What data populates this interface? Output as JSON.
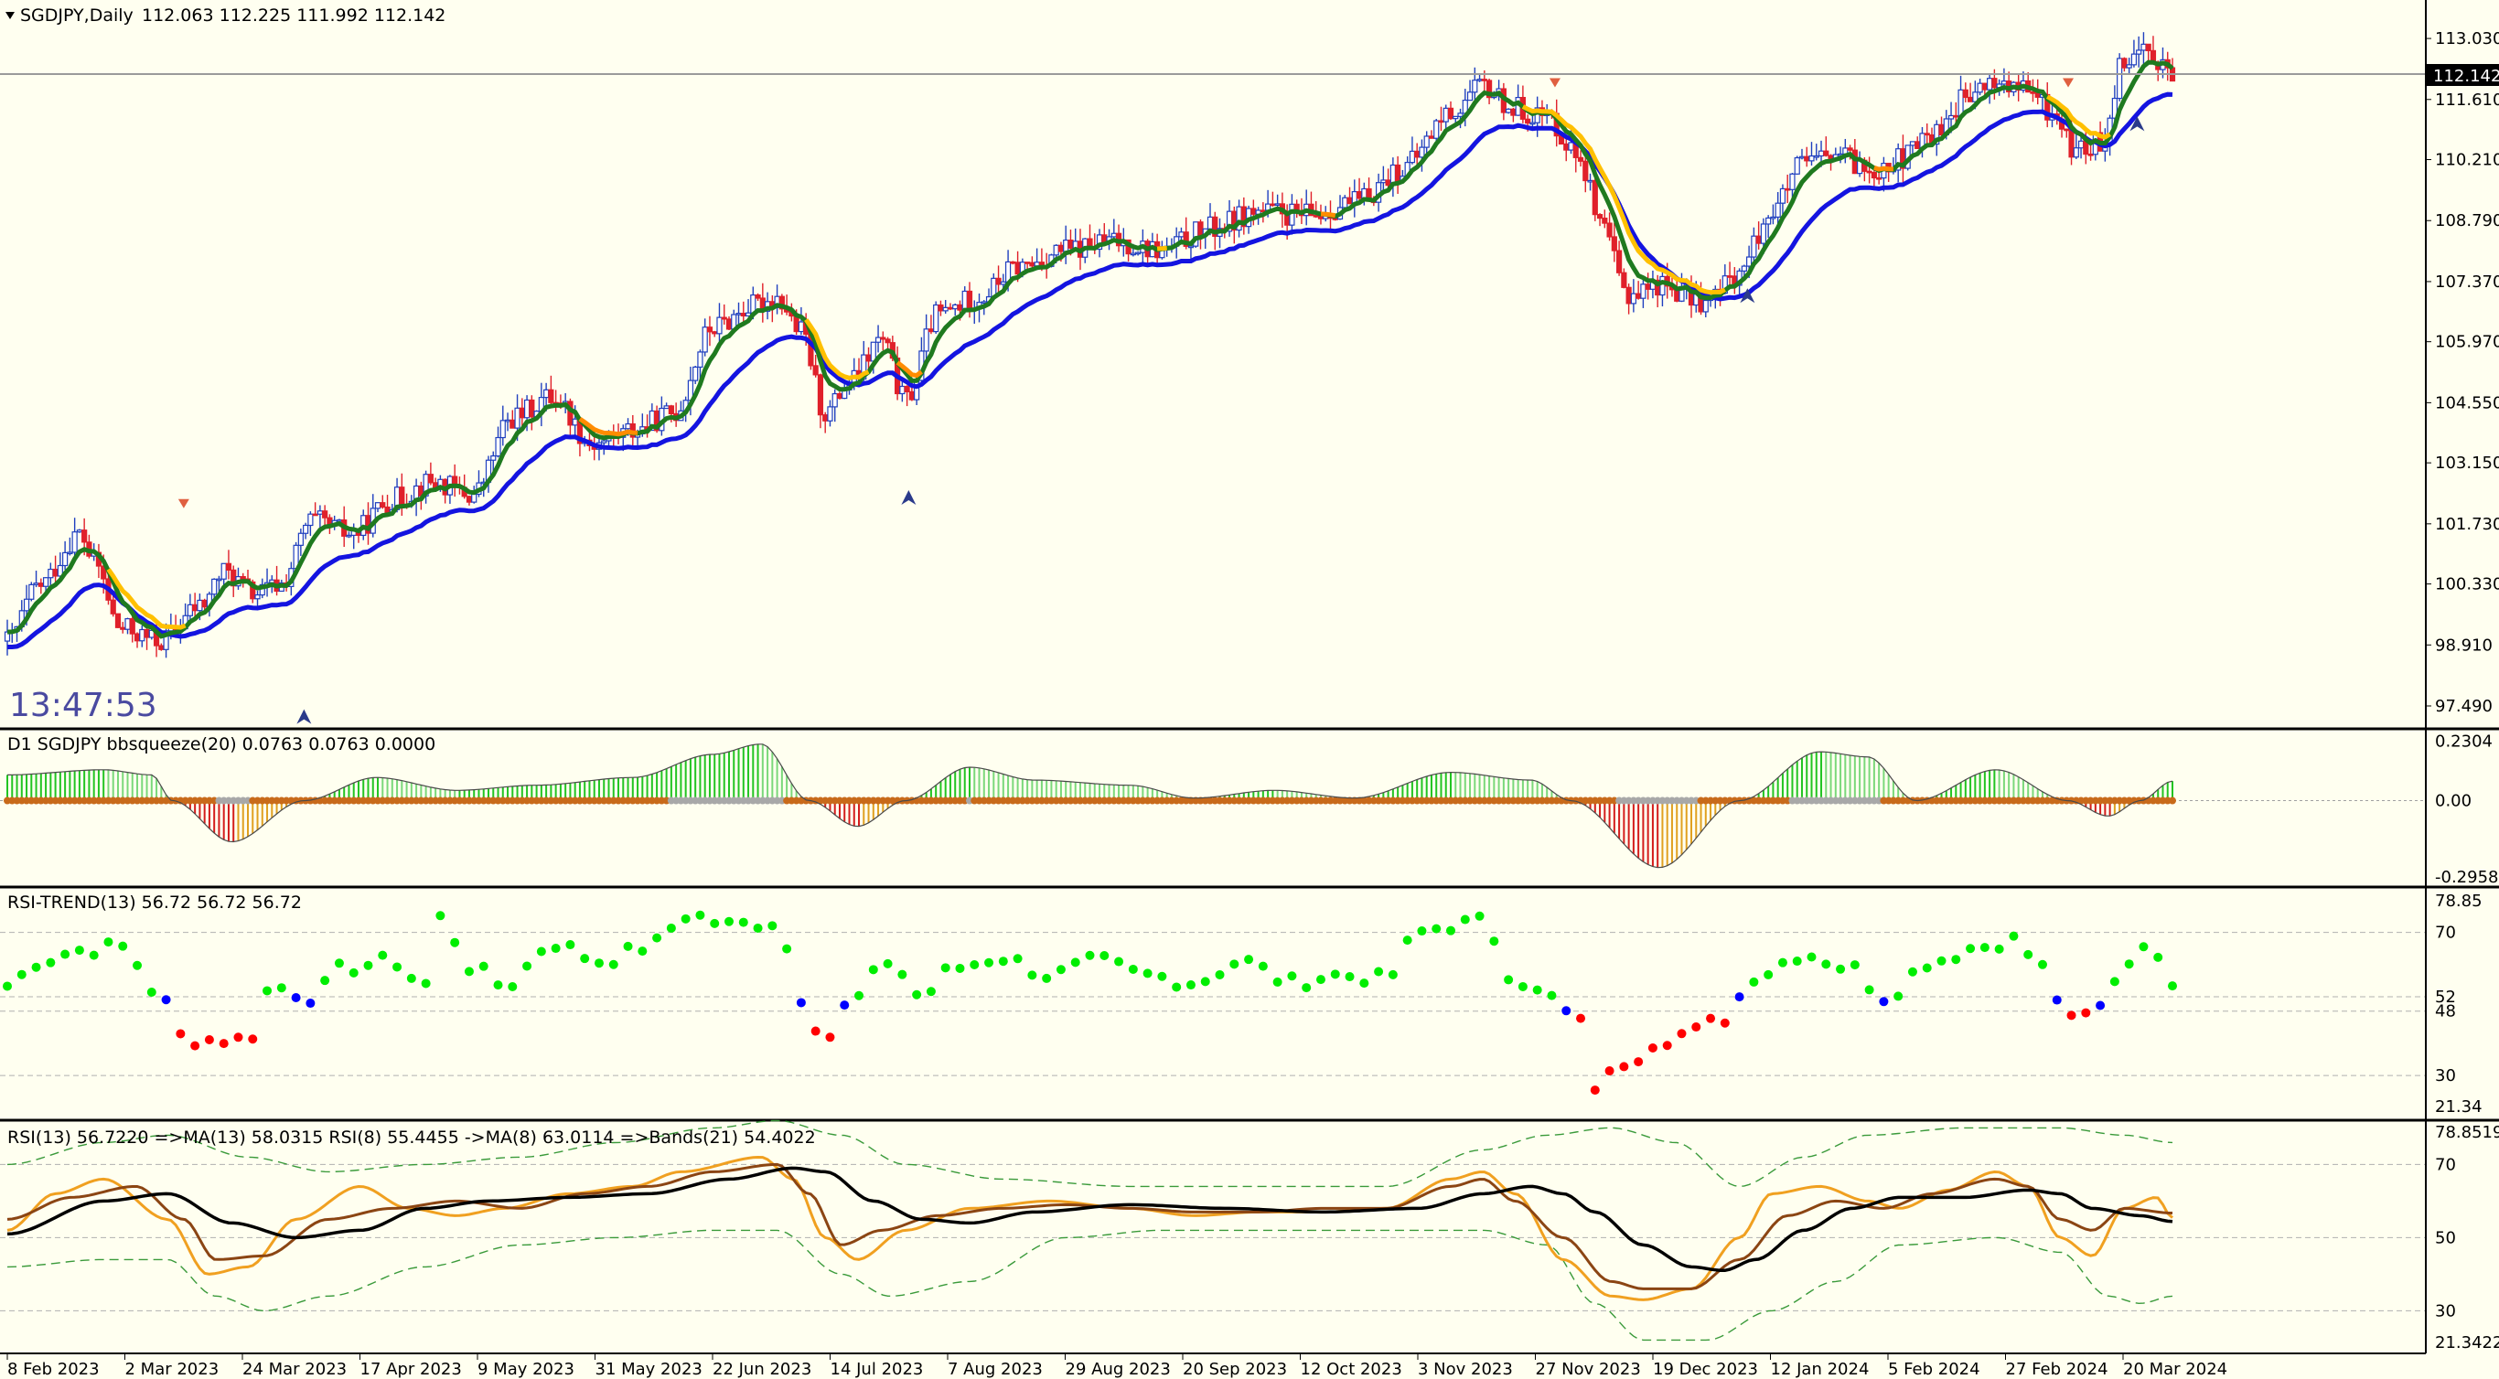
{
  "header": {
    "symbol": "SGDJPY,Daily",
    "ohlc": "112.063 112.225 111.992 112.142",
    "clock": "13:47:53"
  },
  "colors": {
    "background": "#fffff0",
    "axis": "#000000",
    "bull_candle": "#1f3fbf",
    "bear_candle": "#e0202a",
    "ma_fast": "#1f7a1f",
    "ma_slow": "#1414e0",
    "ma_signal_up": "#ffc000",
    "ma_signal_down": "#ff8c00",
    "sq_green": "#22c422",
    "sq_red": "#d41c1c",
    "sq_orange": "#e0a020",
    "rsi_green": "#00ee00",
    "rsi_red": "#ff0000",
    "rsi_blue": "#0000ff",
    "rsi_line": "#f0a020",
    "rsi_ma13": "#8b4513",
    "rsi_long": "#000000",
    "bands": "#3a9a3a"
  },
  "main_panel": {
    "price_axis": [
      "113.030",
      "111.610",
      "110.210",
      "108.790",
      "107.370",
      "105.970",
      "104.550",
      "103.150",
      "101.730",
      "100.330",
      "98.910",
      "97.490"
    ],
    "current_price": "112.142"
  },
  "panel_squeeze": {
    "label": "D1 SGDJPY bbsqueeze(20) 0.0763 0.0763 0.0000",
    "axis": [
      "0.2304",
      "0.00",
      "-0.2958"
    ]
  },
  "panel_rsi_trend": {
    "label": "RSI-TREND(13) 56.72 56.72 56.72",
    "axis": [
      "78.85",
      "70",
      "52",
      "48",
      "30",
      "21.34"
    ]
  },
  "panel_rsi": {
    "label": "RSI(13) 56.7220  =>MA(13) 58.0315  RSI(8) 55.4455  ->MA(8) 63.0114  =>Bands(21) 54.4022",
    "axis": [
      "78.8519",
      "70",
      "50",
      "30",
      "21.3422"
    ]
  },
  "x_axis": [
    "8 Feb 2023",
    "2 Mar 2023",
    "24 Mar 2023",
    "17 Apr 2023",
    "9 May 2023",
    "31 May 2023",
    "22 Jun 2023",
    "14 Jul 2023",
    "7 Aug 2023",
    "29 Aug 2023",
    "20 Sep 2023",
    "12 Oct 2023",
    "3 Nov 2023",
    "27 Nov 2023",
    "19 Dec 2023",
    "12 Jan 2024",
    "5 Feb 2024",
    "27 Feb 2024",
    "20 Mar 2024"
  ],
  "chart_data": {
    "type": "candlestick",
    "symbol": "SGDJPY",
    "timeframe": "Daily",
    "ylim": [
      97.0,
      113.5
    ],
    "close_keypoints": [
      [
        0,
        99.0
      ],
      [
        20,
        100.3
      ],
      [
        45,
        101.5
      ],
      [
        55,
        100.8
      ],
      [
        70,
        99.3
      ],
      [
        95,
        99.0
      ],
      [
        120,
        99.8
      ],
      [
        135,
        100.6
      ],
      [
        155,
        100.1
      ],
      [
        170,
        100.3
      ],
      [
        190,
        101.8
      ],
      [
        215,
        101.5
      ],
      [
        240,
        102.3
      ],
      [
        265,
        102.7
      ],
      [
        290,
        102.4
      ],
      [
        315,
        104.2
      ],
      [
        340,
        104.7
      ],
      [
        365,
        103.6
      ],
      [
        390,
        103.9
      ],
      [
        415,
        104.3
      ],
      [
        440,
        106.3
      ],
      [
        465,
        106.8
      ],
      [
        480,
        107.0
      ],
      [
        495,
        106.2
      ],
      [
        510,
        104.3
      ],
      [
        525,
        105.0
      ],
      [
        545,
        106.0
      ],
      [
        560,
        104.6
      ],
      [
        580,
        106.6
      ],
      [
        605,
        107.0
      ],
      [
        630,
        107.7
      ],
      [
        660,
        108.1
      ],
      [
        690,
        108.3
      ],
      [
        720,
        108.1
      ],
      [
        750,
        108.6
      ],
      [
        780,
        109.0
      ],
      [
        810,
        108.9
      ],
      [
        840,
        109.2
      ],
      [
        870,
        110.0
      ],
      [
        900,
        111.3
      ],
      [
        920,
        111.9
      ],
      [
        940,
        111.4
      ],
      [
        960,
        111.2
      ],
      [
        980,
        110.3
      ],
      [
        995,
        108.5
      ],
      [
        1010,
        107.1
      ],
      [
        1030,
        107.3
      ],
      [
        1060,
        106.9
      ],
      [
        1080,
        107.6
      ],
      [
        1100,
        109.0
      ],
      [
        1120,
        110.1
      ],
      [
        1140,
        110.3
      ],
      [
        1160,
        110.0
      ],
      [
        1180,
        110.2
      ],
      [
        1200,
        110.8
      ],
      [
        1220,
        111.6
      ],
      [
        1240,
        112.0
      ],
      [
        1260,
        111.8
      ],
      [
        1275,
        111.3
      ],
      [
        1290,
        110.4
      ],
      [
        1305,
        110.6
      ],
      [
        1320,
        112.6
      ],
      [
        1335,
        112.8
      ],
      [
        1350,
        112.142
      ]
    ],
    "markers": [
      {
        "type": "sell",
        "day": 110,
        "price": 102.2
      },
      {
        "type": "buy",
        "day": 185,
        "price": 97.2
      },
      {
        "type": "buy",
        "day": 562,
        "price": 102.3
      },
      {
        "type": "sell",
        "day": 965,
        "price": 112.0
      },
      {
        "type": "buy",
        "day": 1085,
        "price": 107.0
      },
      {
        "type": "sell",
        "day": 1285,
        "price": 112.0
      },
      {
        "type": "buy",
        "day": 1328,
        "price": 111.0
      }
    ],
    "bbsqueeze": {
      "ylim": [
        -0.3,
        0.24
      ],
      "keypoints": [
        [
          0,
          0.1
        ],
        [
          60,
          0.12
        ],
        [
          90,
          0.1
        ],
        [
          103,
          0.0
        ],
        [
          140,
          -0.16
        ],
        [
          185,
          0.0
        ],
        [
          230,
          0.09
        ],
        [
          280,
          0.04
        ],
        [
          330,
          0.06
        ],
        [
          390,
          0.09
        ],
        [
          440,
          0.18
        ],
        [
          470,
          0.22
        ],
        [
          500,
          0.0
        ],
        [
          530,
          -0.1
        ],
        [
          560,
          0.0
        ],
        [
          600,
          0.13
        ],
        [
          640,
          0.08
        ],
        [
          700,
          0.06
        ],
        [
          740,
          0.01
        ],
        [
          790,
          0.04
        ],
        [
          840,
          0.01
        ],
        [
          900,
          0.11
        ],
        [
          950,
          0.08
        ],
        [
          975,
          0.0
        ],
        [
          1030,
          -0.26
        ],
        [
          1080,
          0.0
        ],
        [
          1130,
          0.19
        ],
        [
          1160,
          0.17
        ],
        [
          1190,
          0.0
        ],
        [
          1240,
          0.12
        ],
        [
          1285,
          0.0
        ],
        [
          1310,
          -0.06
        ],
        [
          1330,
          0.0
        ],
        [
          1350,
          0.076
        ]
      ]
    },
    "rsi_trend": {
      "ylim": [
        21.34,
        78.85
      ],
      "keypoints": [
        [
          0,
          55
        ],
        [
          20,
          62
        ],
        [
          45,
          65
        ],
        [
          70,
          66
        ],
        [
          100,
          50
        ],
        [
          110,
          40
        ],
        [
          130,
          40
        ],
        [
          150,
          40
        ],
        [
          165,
          55
        ],
        [
          190,
          52
        ],
        [
          210,
          60
        ],
        [
          240,
          62
        ],
        [
          260,
          55
        ],
        [
          270,
          74
        ],
        [
          290,
          60
        ],
        [
          310,
          55
        ],
        [
          340,
          67
        ],
        [
          370,
          62
        ],
        [
          400,
          66
        ],
        [
          425,
          75
        ],
        [
          450,
          72
        ],
        [
          480,
          73
        ],
        [
          495,
          52
        ],
        [
          510,
          40
        ],
        [
          525,
          50
        ],
        [
          550,
          62
        ],
        [
          570,
          52
        ],
        [
          590,
          60
        ],
        [
          620,
          63
        ],
        [
          650,
          58
        ],
        [
          680,
          62
        ],
        [
          710,
          58
        ],
        [
          740,
          56
        ],
        [
          770,
          62
        ],
        [
          800,
          56
        ],
        [
          830,
          58
        ],
        [
          860,
          57
        ],
        [
          880,
          70
        ],
        [
          900,
          72
        ],
        [
          920,
          73
        ],
        [
          940,
          57
        ],
        [
          960,
          52
        ],
        [
          980,
          45
        ],
        [
          990,
          27
        ],
        [
          1010,
          34
        ],
        [
          1030,
          40
        ],
        [
          1050,
          42
        ],
        [
          1070,
          46
        ],
        [
          1090,
          58
        ],
        [
          1120,
          64
        ],
        [
          1150,
          60
        ],
        [
          1170,
          52
        ],
        [
          1200,
          62
        ],
        [
          1230,
          66
        ],
        [
          1250,
          68
        ],
        [
          1270,
          60
        ],
        [
          1285,
          45
        ],
        [
          1300,
          47
        ],
        [
          1320,
          60
        ],
        [
          1330,
          68
        ],
        [
          1350,
          56.72
        ]
      ]
    },
    "rsi": {
      "ylim": [
        21.34,
        78.85
      ],
      "rsi13_keypoints": [
        [
          0,
          55
        ],
        [
          40,
          61
        ],
        [
          80,
          64
        ],
        [
          110,
          55
        ],
        [
          130,
          44
        ],
        [
          160,
          45
        ],
        [
          200,
          55
        ],
        [
          240,
          58
        ],
        [
          280,
          60
        ],
        [
          320,
          58
        ],
        [
          360,
          62
        ],
        [
          400,
          64
        ],
        [
          440,
          68
        ],
        [
          480,
          70
        ],
        [
          500,
          62
        ],
        [
          520,
          48
        ],
        [
          545,
          52
        ],
        [
          580,
          56
        ],
        [
          620,
          58
        ],
        [
          660,
          59
        ],
        [
          700,
          58
        ],
        [
          740,
          57
        ],
        [
          780,
          57
        ],
        [
          820,
          58
        ],
        [
          860,
          58
        ],
        [
          900,
          64
        ],
        [
          920,
          66
        ],
        [
          940,
          60
        ],
        [
          970,
          50
        ],
        [
          1000,
          38
        ],
        [
          1020,
          36
        ],
        [
          1050,
          36
        ],
        [
          1080,
          44
        ],
        [
          1110,
          56
        ],
        [
          1140,
          60
        ],
        [
          1170,
          58
        ],
        [
          1200,
          62
        ],
        [
          1240,
          66
        ],
        [
          1260,
          64
        ],
        [
          1280,
          55
        ],
        [
          1300,
          52
        ],
        [
          1320,
          58
        ],
        [
          1350,
          56.72
        ]
      ],
      "rsi8_keypoints": [
        [
          0,
          52
        ],
        [
          30,
          62
        ],
        [
          60,
          66
        ],
        [
          100,
          55
        ],
        [
          125,
          40
        ],
        [
          150,
          42
        ],
        [
          180,
          55
        ],
        [
          220,
          64
        ],
        [
          250,
          58
        ],
        [
          280,
          56
        ],
        [
          310,
          58
        ],
        [
          350,
          62
        ],
        [
          390,
          64
        ],
        [
          420,
          68
        ],
        [
          470,
          72
        ],
        [
          490,
          66
        ],
        [
          510,
          50
        ],
        [
          530,
          44
        ],
        [
          560,
          52
        ],
        [
          600,
          58
        ],
        [
          650,
          60
        ],
        [
          700,
          58
        ],
        [
          740,
          56
        ],
        [
          780,
          57
        ],
        [
          820,
          57
        ],
        [
          860,
          58
        ],
        [
          900,
          66
        ],
        [
          920,
          68
        ],
        [
          940,
          62
        ],
        [
          970,
          44
        ],
        [
          1000,
          34
        ],
        [
          1020,
          33
        ],
        [
          1050,
          36
        ],
        [
          1080,
          50
        ],
        [
          1100,
          62
        ],
        [
          1130,
          64
        ],
        [
          1160,
          60
        ],
        [
          1180,
          58
        ],
        [
          1210,
          63
        ],
        [
          1240,
          68
        ],
        [
          1260,
          64
        ],
        [
          1280,
          50
        ],
        [
          1300,
          45
        ],
        [
          1320,
          58
        ],
        [
          1340,
          61
        ],
        [
          1350,
          55.45
        ]
      ],
      "ma_long_keypoints": [
        [
          0,
          51
        ],
        [
          60,
          60
        ],
        [
          100,
          62
        ],
        [
          140,
          54
        ],
        [
          180,
          50
        ],
        [
          220,
          52
        ],
        [
          260,
          58
        ],
        [
          300,
          60
        ],
        [
          350,
          61
        ],
        [
          400,
          62
        ],
        [
          450,
          66
        ],
        [
          490,
          69
        ],
        [
          510,
          68
        ],
        [
          540,
          60
        ],
        [
          570,
          55
        ],
        [
          600,
          54
        ],
        [
          640,
          57
        ],
        [
          700,
          59
        ],
        [
          760,
          58
        ],
        [
          820,
          57
        ],
        [
          880,
          58
        ],
        [
          920,
          62
        ],
        [
          950,
          64
        ],
        [
          970,
          62
        ],
        [
          990,
          57
        ],
        [
          1020,
          48
        ],
        [
          1050,
          42
        ],
        [
          1070,
          41
        ],
        [
          1090,
          44
        ],
        [
          1120,
          52
        ],
        [
          1150,
          58
        ],
        [
          1180,
          61
        ],
        [
          1220,
          61
        ],
        [
          1260,
          63
        ],
        [
          1280,
          62
        ],
        [
          1300,
          58
        ],
        [
          1330,
          56
        ],
        [
          1350,
          54.4
        ]
      ],
      "bands_upper_keypoints": [
        [
          0,
          70
        ],
        [
          60,
          76
        ],
        [
          100,
          78
        ],
        [
          150,
          72
        ],
        [
          200,
          68
        ],
        [
          260,
          70
        ],
        [
          320,
          72
        ],
        [
          380,
          76
        ],
        [
          440,
          80
        ],
        [
          480,
          82
        ],
        [
          520,
          78
        ],
        [
          560,
          70
        ],
        [
          620,
          66
        ],
        [
          700,
          64
        ],
        [
          780,
          64
        ],
        [
          860,
          64
        ],
        [
          920,
          74
        ],
        [
          960,
          78
        ],
        [
          1000,
          80
        ],
        [
          1040,
          76
        ],
        [
          1080,
          64
        ],
        [
          1120,
          72
        ],
        [
          1160,
          78
        ],
        [
          1220,
          80
        ],
        [
          1280,
          80
        ],
        [
          1320,
          78
        ],
        [
          1350,
          76
        ]
      ],
      "bands_lower_keypoints": [
        [
          0,
          42
        ],
        [
          60,
          44
        ],
        [
          100,
          44
        ],
        [
          130,
          34
        ],
        [
          160,
          30
        ],
        [
          200,
          34
        ],
        [
          260,
          42
        ],
        [
          320,
          48
        ],
        [
          380,
          50
        ],
        [
          440,
          52
        ],
        [
          480,
          52
        ],
        [
          520,
          40
        ],
        [
          550,
          34
        ],
        [
          600,
          38
        ],
        [
          660,
          50
        ],
        [
          720,
          52
        ],
        [
          780,
          52
        ],
        [
          860,
          52
        ],
        [
          920,
          52
        ],
        [
          960,
          48
        ],
        [
          990,
          32
        ],
        [
          1020,
          22
        ],
        [
          1060,
          22
        ],
        [
          1100,
          30
        ],
        [
          1140,
          38
        ],
        [
          1180,
          48
        ],
        [
          1240,
          50
        ],
        [
          1280,
          46
        ],
        [
          1310,
          34
        ],
        [
          1330,
          32
        ],
        [
          1350,
          34
        ]
      ]
    }
  }
}
